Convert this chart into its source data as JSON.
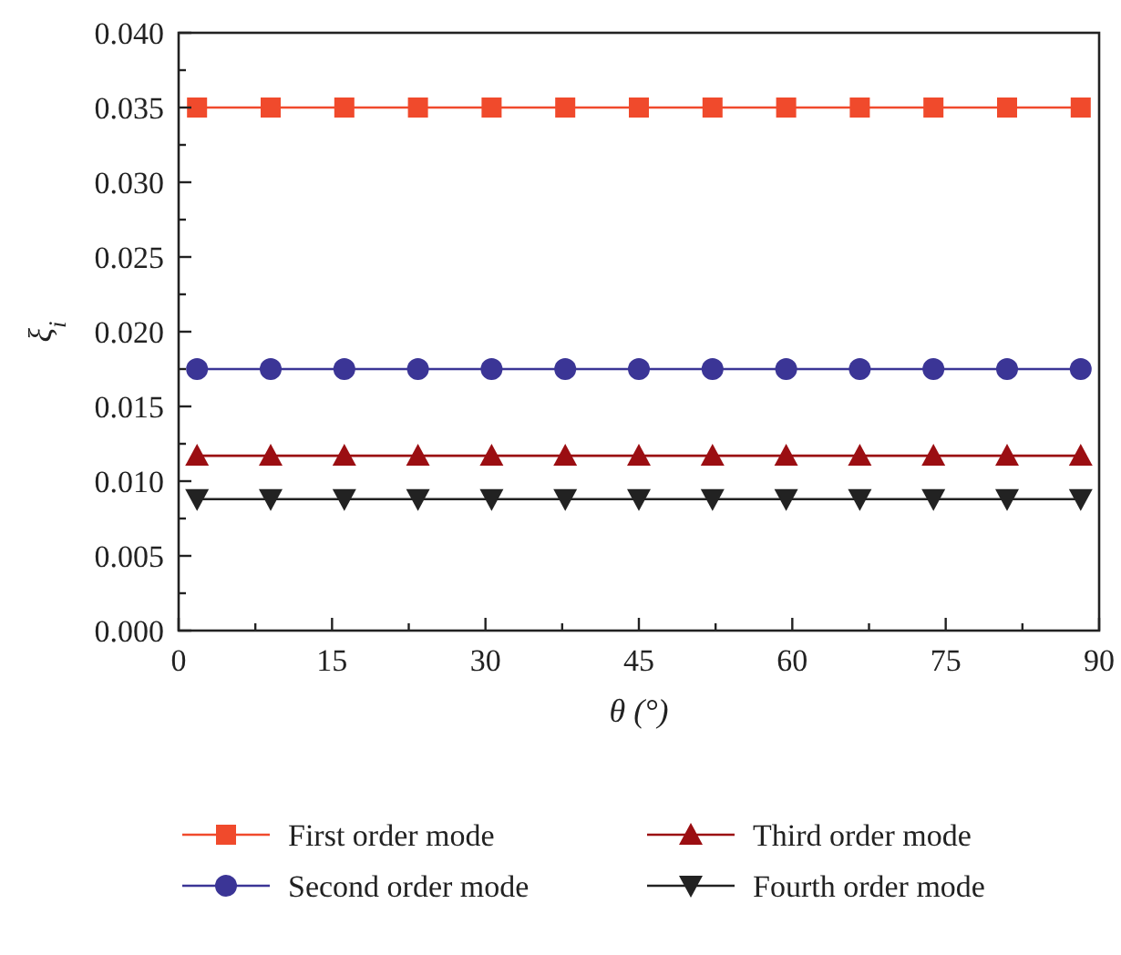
{
  "chart_data": {
    "type": "line",
    "xlabel": "θ (°)",
    "ylabel": "ξ$_{i}$",
    "x": [
      1.8,
      9.0,
      16.2,
      23.4,
      30.6,
      37.8,
      45.0,
      52.2,
      59.4,
      66.6,
      73.8,
      81.0,
      88.2
    ],
    "xlim": [
      0,
      90
    ],
    "xticks": [
      0,
      {
        "value": 7.5,
        "label": null
      },
      15,
      {
        "value": 22.5,
        "label": null
      },
      30,
      {
        "value": 37.5,
        "label": null
      },
      45,
      {
        "value": 52.5,
        "label": null
      },
      60,
      {
        "value": 67.5,
        "label": null
      },
      75,
      {
        "value": 82.5,
        "label": null
      },
      90
    ],
    "ylim": [
      0,
      0.04
    ],
    "yticks": [
      {
        "value": 0,
        "label": "0.000"
      },
      {
        "value": 0.0025,
        "label": null
      },
      {
        "value": 0.005,
        "label": "0.005"
      },
      {
        "value": 0.0075,
        "label": null
      },
      {
        "value": 0.01,
        "label": "0.010"
      },
      {
        "value": 0.0125,
        "label": null
      },
      {
        "value": 0.015,
        "label": "0.015"
      },
      {
        "value": 0.0175,
        "label": null
      },
      {
        "value": 0.02,
        "label": "0.020"
      },
      {
        "value": 0.0225,
        "label": null
      },
      {
        "value": 0.025,
        "label": "0.025"
      },
      {
        "value": 0.0275,
        "label": null
      },
      {
        "value": 0.03,
        "label": "0.030"
      },
      {
        "value": 0.0325,
        "label": null
      },
      {
        "value": 0.035,
        "label": "0.035"
      },
      {
        "value": 0.0375,
        "label": null
      },
      {
        "value": 0.04,
        "label": "0.040"
      }
    ],
    "legend": "bottom",
    "grid": false,
    "series": [
      {
        "name": "First order mode",
        "color": "#f04a2c",
        "marker": "square",
        "values": [
          0.035,
          0.035,
          0.035,
          0.035,
          0.035,
          0.035,
          0.035,
          0.035,
          0.035,
          0.035,
          0.035,
          0.035,
          0.035
        ]
      },
      {
        "name": "Second order mode",
        "color": "#3b3596",
        "marker": "circle",
        "values": [
          0.0175,
          0.0175,
          0.0175,
          0.0175,
          0.0175,
          0.0175,
          0.0175,
          0.0175,
          0.0175,
          0.0175,
          0.0175,
          0.0175,
          0.0175
        ]
      },
      {
        "name": "Third order mode",
        "color": "#9b0e12",
        "marker": "triangle",
        "values": [
          0.0117,
          0.0117,
          0.0117,
          0.0117,
          0.0117,
          0.0117,
          0.0117,
          0.0117,
          0.0117,
          0.0117,
          0.0117,
          0.0117,
          0.0117
        ]
      },
      {
        "name": "Fourth order mode",
        "color": "#222222",
        "marker": "triangle-down",
        "values": [
          0.0088,
          0.0088,
          0.0088,
          0.0088,
          0.0088,
          0.0088,
          0.0088,
          0.0088,
          0.0088,
          0.0088,
          0.0088,
          0.0088,
          0.0088
        ]
      }
    ]
  }
}
